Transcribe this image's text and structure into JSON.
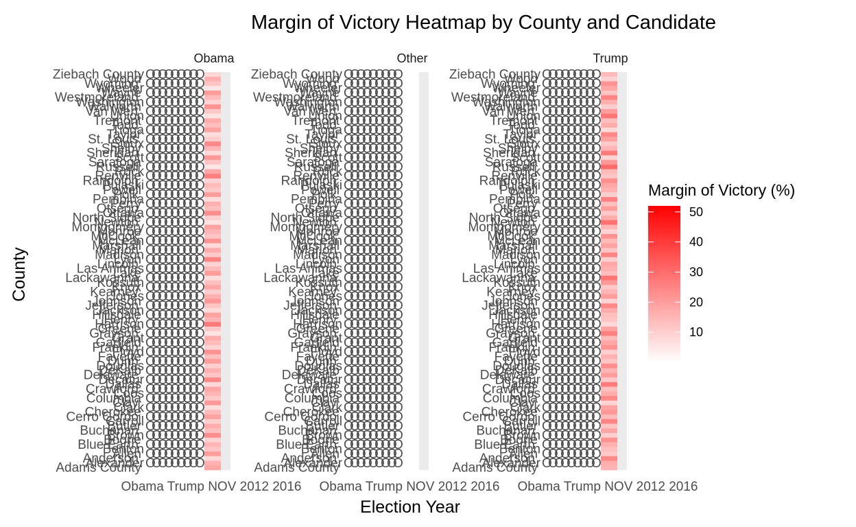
{
  "chart_data": {
    "type": "heatmap",
    "title": "Margin of Victory Heatmap by County and Candidate",
    "xlabel": "Election Year",
    "ylabel": "County",
    "facet_labels": [
      "Obama",
      "Other",
      "Trump"
    ],
    "x_tick_labels_overlapping": "Obama Trump NOV 2012 2016",
    "county_labels_top_to_bottom": [
      "Ziebach County",
      "Wood",
      "Wyoming",
      "Wheeler",
      "Wayne",
      "Westmoreland",
      "Washington",
      "Walworth",
      "Van Wert",
      "Union",
      "Tremont",
      "Todd",
      "Tioga",
      "Taylor",
      "St. Louis",
      "Sioux",
      "Shelby",
      "Sheridan",
      "Scott",
      "Saratoga",
      "Russell",
      "Rock",
      "Renville",
      "Randolph",
      "Pulaski",
      "Powell",
      "Polk",
      "Pembina",
      "Perry",
      "Otsego",
      "Ottawa",
      "North Slope",
      "Newton",
      "Montgomery",
      "Monroe",
      "McCook",
      "McLean",
      "Marshall",
      "Marion",
      "Madison",
      "Lyon",
      "Lincoln",
      "Las Animas",
      "Lake",
      "Lackawanna",
      "Kossuth",
      "Knox",
      "Kearney",
      "Jones",
      "Johnson",
      "Jefferson",
      "Jackson",
      "Hillsdale",
      "Henry",
      "Harrison",
      "Greene",
      "Grayson",
      "Grant",
      "Garfield",
      "Franklin",
      "Floyd",
      "Fayette",
      "Dunn",
      "Douglas",
      "DeKalb",
      "Delaware",
      "Decatur",
      "Dallas",
      "Crawford",
      "Coos",
      "Columbia",
      "Clay",
      "Clark",
      "Cherokee",
      "Cerro Gordo",
      "Carroll",
      "Butler",
      "Buchanan",
      "Brown",
      "Boone",
      "Blue Earth",
      "Benton",
      "Allen",
      "Anderson",
      "Alexander",
      "Adams County"
    ],
    "color_scale": {
      "low": "#ffffff",
      "high": "#ff0000",
      "min": 0,
      "max": 52
    },
    "legend": {
      "title": "Margin of Victory (%)",
      "ticks": [
        50,
        40,
        30,
        20,
        10
      ],
      "position": "right"
    },
    "series": [
      {
        "name": "Obama",
        "values": [
          8,
          16,
          12,
          5,
          20,
          14,
          9,
          22,
          11,
          6,
          17,
          13,
          19,
          7,
          10,
          24,
          15,
          8,
          21,
          12,
          5,
          18,
          26,
          9,
          14,
          11,
          20,
          7,
          16,
          13,
          23,
          10,
          6,
          19,
          15,
          12,
          22,
          8,
          17,
          11,
          25,
          9,
          14,
          20,
          7,
          13,
          18,
          10,
          16,
          21,
          12,
          8,
          19,
          15,
          27,
          11,
          6,
          17,
          14,
          9,
          22,
          13,
          20,
          10,
          16,
          12,
          24,
          8,
          18,
          15,
          11,
          21,
          7,
          14,
          19,
          10,
          17,
          13,
          23,
          9,
          15,
          12,
          20,
          8,
          16,
          18
        ]
      },
      {
        "name": "Other",
        "values": [
          0,
          0,
          0,
          0,
          0,
          0,
          0,
          0,
          0,
          0,
          0,
          0,
          0,
          0,
          0,
          0,
          0,
          0,
          0,
          0,
          0,
          0,
          0,
          0,
          0,
          0,
          0,
          0,
          0,
          0,
          0,
          0,
          0,
          0,
          0,
          0,
          0,
          0,
          0,
          0,
          0,
          0,
          0,
          0,
          0,
          0,
          0,
          0,
          0,
          0,
          0,
          0,
          0,
          0,
          0,
          0,
          0,
          0,
          0,
          0,
          0,
          0,
          0,
          0,
          0,
          0,
          0,
          0,
          0,
          0,
          0,
          0,
          0,
          0,
          0,
          0,
          0,
          0,
          0,
          0,
          0,
          0,
          0,
          0,
          0,
          0
        ]
      },
      {
        "name": "Trump",
        "values": [
          14,
          9,
          22,
          18,
          12,
          25,
          16,
          10,
          20,
          28,
          13,
          17,
          8,
          24,
          19,
          11,
          15,
          27,
          9,
          21,
          30,
          14,
          12,
          23,
          18,
          16,
          10,
          26,
          13,
          20,
          11,
          17,
          29,
          15,
          9,
          22,
          14,
          19,
          12,
          25,
          10,
          18,
          16,
          13,
          28,
          21,
          11,
          15,
          20,
          9,
          24,
          17,
          13,
          12,
          8,
          19,
          26,
          14,
          18,
          22,
          10,
          16,
          12,
          23,
          15,
          20,
          11,
          27,
          13,
          17,
          24,
          9,
          19,
          21,
          14,
          25,
          12,
          18,
          10,
          22,
          16,
          13,
          11,
          24,
          17,
          15
        ]
      }
    ]
  }
}
